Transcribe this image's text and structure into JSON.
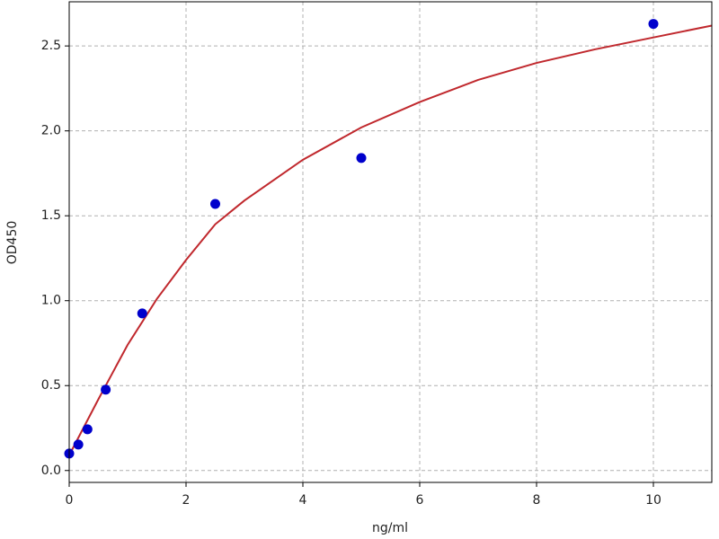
{
  "chart_data": {
    "type": "scatter",
    "xlabel": "ng/ml",
    "ylabel": "OD450",
    "xlim": [
      0,
      11
    ],
    "ylim": [
      -0.07,
      2.76
    ],
    "xticks": [
      0,
      2,
      4,
      6,
      8,
      10
    ],
    "yticks": [
      {
        "value": 0,
        "label": "0.0"
      },
      0.5,
      {
        "value": 1,
        "label": "1.0"
      },
      1.5,
      {
        "value": 2,
        "label": "2.0"
      },
      2.5
    ],
    "grid": true,
    "series": [
      {
        "type": "line",
        "color": "#c0282d",
        "x": [
          0,
          0.5,
          1,
          1.5,
          2,
          2.5,
          3,
          4,
          5,
          6,
          7,
          8,
          9,
          10,
          11
        ],
        "values": [
          0.09,
          0.42,
          0.74,
          1.01,
          1.24,
          1.45,
          1.59,
          1.83,
          2.02,
          2.17,
          2.3,
          2.4,
          2.48,
          2.55,
          2.62
        ]
      },
      {
        "type": "scatter",
        "color": "#0000cc",
        "x": [
          0,
          0.156,
          0.3125,
          0.625,
          1.25,
          2.5,
          5,
          10
        ],
        "values": [
          0.1,
          0.153,
          0.243,
          0.476,
          0.925,
          1.57,
          1.84,
          2.63
        ]
      }
    ]
  }
}
